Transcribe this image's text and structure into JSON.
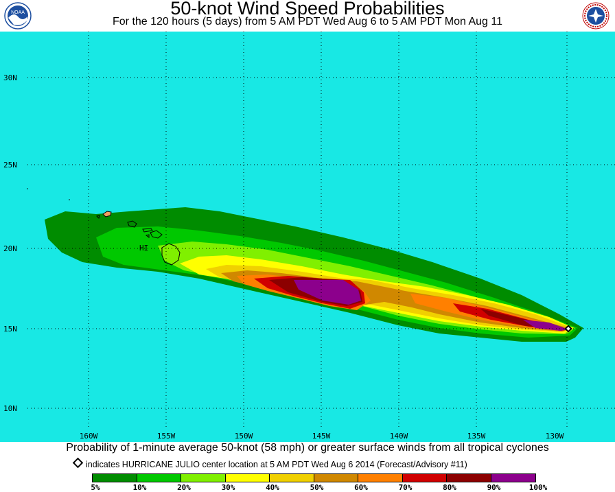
{
  "header": {
    "title": "50-knot Wind Speed Probabilities",
    "subtitle": "For the 120 hours (5 days) from 5 AM PDT Wed Aug 6 to 5 AM PDT Mon Aug 11",
    "left_logo": "NOAA",
    "right_logo": "NATIONAL WEATHER SERVICE"
  },
  "map": {
    "background_color": "#18e8e4",
    "latitude_labels": [
      "30N",
      "25N",
      "20N",
      "15N",
      "10N"
    ],
    "longitude_labels": [
      "160W",
      "155W",
      "150W",
      "145W",
      "140W",
      "135W",
      "130W"
    ],
    "place_label": "HI",
    "grid": "dotted"
  },
  "footer": {
    "description": "Probability of 1-minute average 50-knot (58 mph) or greater surface winds from all tropical cyclones",
    "marker_note": "indicates HURRICANE JULIO center location at 5 AM PDT Wed Aug 6 2014 (Forecast/Advisory #11)"
  },
  "legend": {
    "colors": [
      "#008c00",
      "#00c800",
      "#80f000",
      "#ffff00",
      "#f0d000",
      "#d08800",
      "#ff8000",
      "#d00000",
      "#8c0000",
      "#8c008c"
    ],
    "labels": [
      "5%",
      "10%",
      "20%",
      "30%",
      "40%",
      "50%",
      "60%",
      "70%",
      "80%",
      "90%",
      "100%"
    ]
  }
}
